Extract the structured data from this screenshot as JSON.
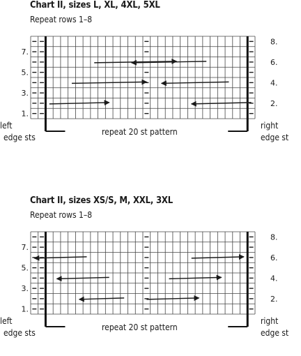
{
  "charts": [
    {
      "title": "Chart II, sizes  L, XL, 4XL, 5XL",
      "subtitle": "Repeat rows 1–8",
      "rows_left": [
        "1.",
        "3.",
        "5.",
        "7."
      ],
      "rows_right": [
        "2.",
        "4.",
        "6.",
        "8."
      ],
      "left_edge_label": [
        "left",
        "edge sts"
      ],
      "right_edge_label": [
        "right",
        "edge st"
      ],
      "repeat_label": "repeat 20 st pattern",
      "grid": {
        "columns": 30,
        "rows": 8
      },
      "arrows": [
        {
          "row": 2,
          "from_col": 2,
          "to_col": 10
        },
        {
          "row": 2,
          "from_col": 29,
          "to_col": 21
        },
        {
          "row": 4,
          "from_col": 5,
          "to_col": 15
        },
        {
          "row": 4,
          "from_col": 26,
          "to_col": 17
        },
        {
          "row": 6,
          "from_col": 8,
          "to_col": 19
        },
        {
          "row": 6,
          "from_col": 23,
          "to_col": 13
        }
      ]
    },
    {
      "title": "Chart II, sizes  XS/S, M, XXL, 3XL",
      "subtitle": "Repeat rows 1–8",
      "rows_left": [
        "1.",
        "3.",
        "5.",
        "7."
      ],
      "rows_right": [
        "2.",
        "4.",
        "6.",
        "8."
      ],
      "left_edge_label": [
        "left",
        "edge sts"
      ],
      "right_edge_label": [
        "right",
        "edge st"
      ],
      "repeat_label": "repeat 20 st pattern",
      "grid": {
        "columns": 30,
        "rows": 8
      },
      "arrows": [
        {
          "row": 2,
          "from_col": 12,
          "to_col": 6
        },
        {
          "row": 2,
          "from_col": 15,
          "to_col": 22
        },
        {
          "row": 4,
          "from_col": 10,
          "to_col": 3
        },
        {
          "row": 4,
          "from_col": 18,
          "to_col": 25
        },
        {
          "row": 6,
          "from_col": 7,
          "to_col": 0
        },
        {
          "row": 6,
          "from_col": 21,
          "to_col": 28
        }
      ]
    }
  ]
}
